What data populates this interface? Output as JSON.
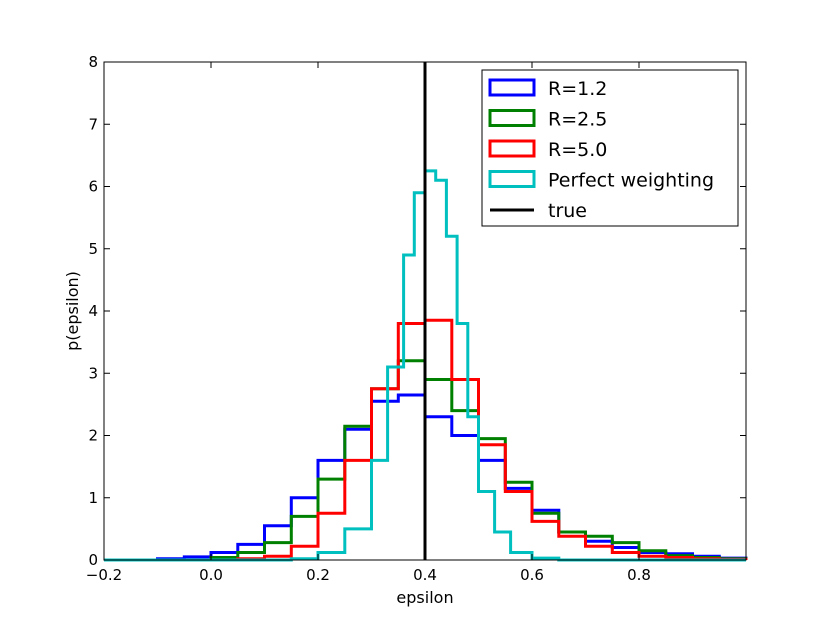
{
  "chart_data": {
    "type": "histogram",
    "title": "",
    "xlabel": "epsilon",
    "ylabel": "p(epsilon)",
    "xlim": [
      -0.2,
      1.0
    ],
    "ylim": [
      0,
      8
    ],
    "x_ticks": [
      -0.2,
      0.0,
      0.2,
      0.4,
      0.6,
      0.8
    ],
    "x_tick_labels": [
      "−0.2",
      "0.0",
      "0.2",
      "0.4",
      "0.6",
      "0.8"
    ],
    "y_ticks": [
      0,
      1,
      2,
      3,
      4,
      5,
      6,
      7,
      8
    ],
    "y_tick_labels": [
      "0",
      "1",
      "2",
      "3",
      "4",
      "5",
      "6",
      "7",
      "8"
    ],
    "legend_position": "top-right",
    "vertical_line": {
      "name": "true",
      "x": 0.4,
      "color": "#000000"
    },
    "series": [
      {
        "name": "R=1.2",
        "color": "#0000ff",
        "x": [
          -0.2,
          -0.1,
          -0.05,
          0.0,
          0.05,
          0.1,
          0.15,
          0.2,
          0.25,
          0.3,
          0.35,
          0.4,
          0.45,
          0.5,
          0.55,
          0.6,
          0.65,
          0.7,
          0.75,
          0.8,
          0.85,
          0.9,
          0.95,
          1.0
        ],
        "y": [
          0.0,
          0.02,
          0.05,
          0.12,
          0.25,
          0.55,
          1.0,
          1.6,
          2.1,
          2.55,
          2.65,
          2.3,
          2.0,
          1.6,
          1.15,
          0.8,
          0.45,
          0.3,
          0.2,
          0.12,
          0.1,
          0.06,
          0.03,
          0.0
        ]
      },
      {
        "name": "R=2.5",
        "color": "#008000",
        "x": [
          -0.2,
          -0.05,
          0.0,
          0.05,
          0.1,
          0.15,
          0.2,
          0.25,
          0.3,
          0.35,
          0.4,
          0.45,
          0.5,
          0.55,
          0.6,
          0.65,
          0.7,
          0.75,
          0.8,
          0.85,
          0.9,
          0.95,
          1.0
        ],
        "y": [
          0.0,
          0.0,
          0.04,
          0.12,
          0.28,
          0.7,
          1.3,
          2.15,
          2.75,
          3.2,
          2.9,
          2.4,
          1.95,
          1.25,
          0.75,
          0.45,
          0.38,
          0.28,
          0.15,
          0.07,
          0.04,
          0.02,
          0.0
        ]
      },
      {
        "name": "R=5.0",
        "color": "#ff0000",
        "x": [
          -0.2,
          0.0,
          0.05,
          0.1,
          0.15,
          0.2,
          0.25,
          0.3,
          0.35,
          0.4,
          0.45,
          0.5,
          0.55,
          0.6,
          0.65,
          0.7,
          0.75,
          0.8,
          0.85,
          0.9,
          0.95,
          1.0
        ],
        "y": [
          0.0,
          0.0,
          0.02,
          0.06,
          0.22,
          0.75,
          1.6,
          2.75,
          3.8,
          3.85,
          2.9,
          1.85,
          1.1,
          0.62,
          0.38,
          0.22,
          0.12,
          0.06,
          0.04,
          0.02,
          0.01,
          0.0
        ]
      },
      {
        "name": "Perfect weighting",
        "color": "#00bfbf",
        "x": [
          -0.2,
          0.1,
          0.15,
          0.2,
          0.25,
          0.3,
          0.33,
          0.36,
          0.38,
          0.4,
          0.42,
          0.44,
          0.46,
          0.48,
          0.5,
          0.53,
          0.56,
          0.6,
          0.65,
          0.7,
          1.0
        ],
        "y": [
          0.0,
          0.0,
          0.02,
          0.12,
          0.5,
          1.6,
          3.1,
          4.9,
          5.9,
          6.25,
          6.1,
          5.2,
          3.8,
          2.3,
          1.1,
          0.45,
          0.12,
          0.03,
          0.0,
          0.0,
          0.0
        ]
      }
    ]
  }
}
